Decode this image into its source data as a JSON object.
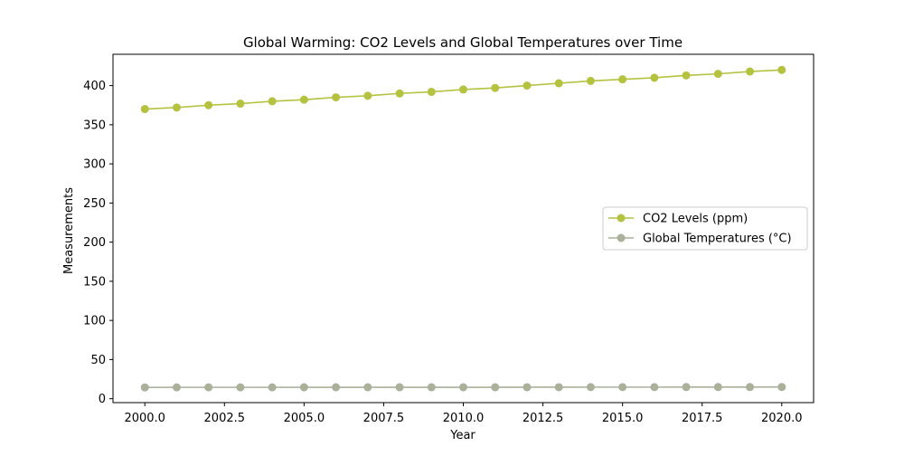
{
  "chart_data": {
    "type": "line",
    "title": "Global Warming: CO2 Levels and Global Temperatures over Time",
    "xlabel": "Year",
    "ylabel": "Measurements",
    "xlim": [
      1999.0,
      2021.0
    ],
    "ylim": [
      -5,
      440
    ],
    "x_ticks": [
      2000.0,
      2002.5,
      2005.0,
      2007.5,
      2010.0,
      2012.5,
      2015.0,
      2017.5,
      2020.0
    ],
    "x_tick_labels": [
      "2000.0",
      "2002.5",
      "2005.0",
      "2007.5",
      "2010.0",
      "2012.5",
      "2015.0",
      "2017.5",
      "2020.0"
    ],
    "y_ticks": [
      0,
      50,
      100,
      150,
      200,
      250,
      300,
      350,
      400
    ],
    "y_tick_labels": [
      "0",
      "50",
      "100",
      "150",
      "200",
      "250",
      "300",
      "350",
      "400"
    ],
    "grid": false,
    "legend_position": "center-right",
    "x": [
      2000,
      2001,
      2002,
      2003,
      2004,
      2005,
      2006,
      2007,
      2008,
      2009,
      2010,
      2011,
      2012,
      2013,
      2014,
      2015,
      2016,
      2017,
      2018,
      2019,
      2020
    ],
    "series": [
      {
        "name": "CO2 Levels (ppm)",
        "color": "#b5c240",
        "marker": "circle",
        "values": [
          370,
          372,
          375,
          377,
          380,
          382,
          385,
          387,
          390,
          392,
          395,
          397,
          400,
          403,
          406,
          408,
          410,
          413,
          415,
          418,
          420
        ]
      },
      {
        "name": "Global Temperatures (°C)",
        "color": "#aab09a",
        "marker": "circle",
        "values": [
          14.4,
          14.5,
          14.5,
          14.5,
          14.5,
          14.6,
          14.6,
          14.6,
          14.6,
          14.6,
          14.6,
          14.6,
          14.7,
          14.7,
          14.8,
          14.8,
          14.8,
          14.9,
          14.9,
          14.9,
          15.0
        ]
      }
    ]
  }
}
